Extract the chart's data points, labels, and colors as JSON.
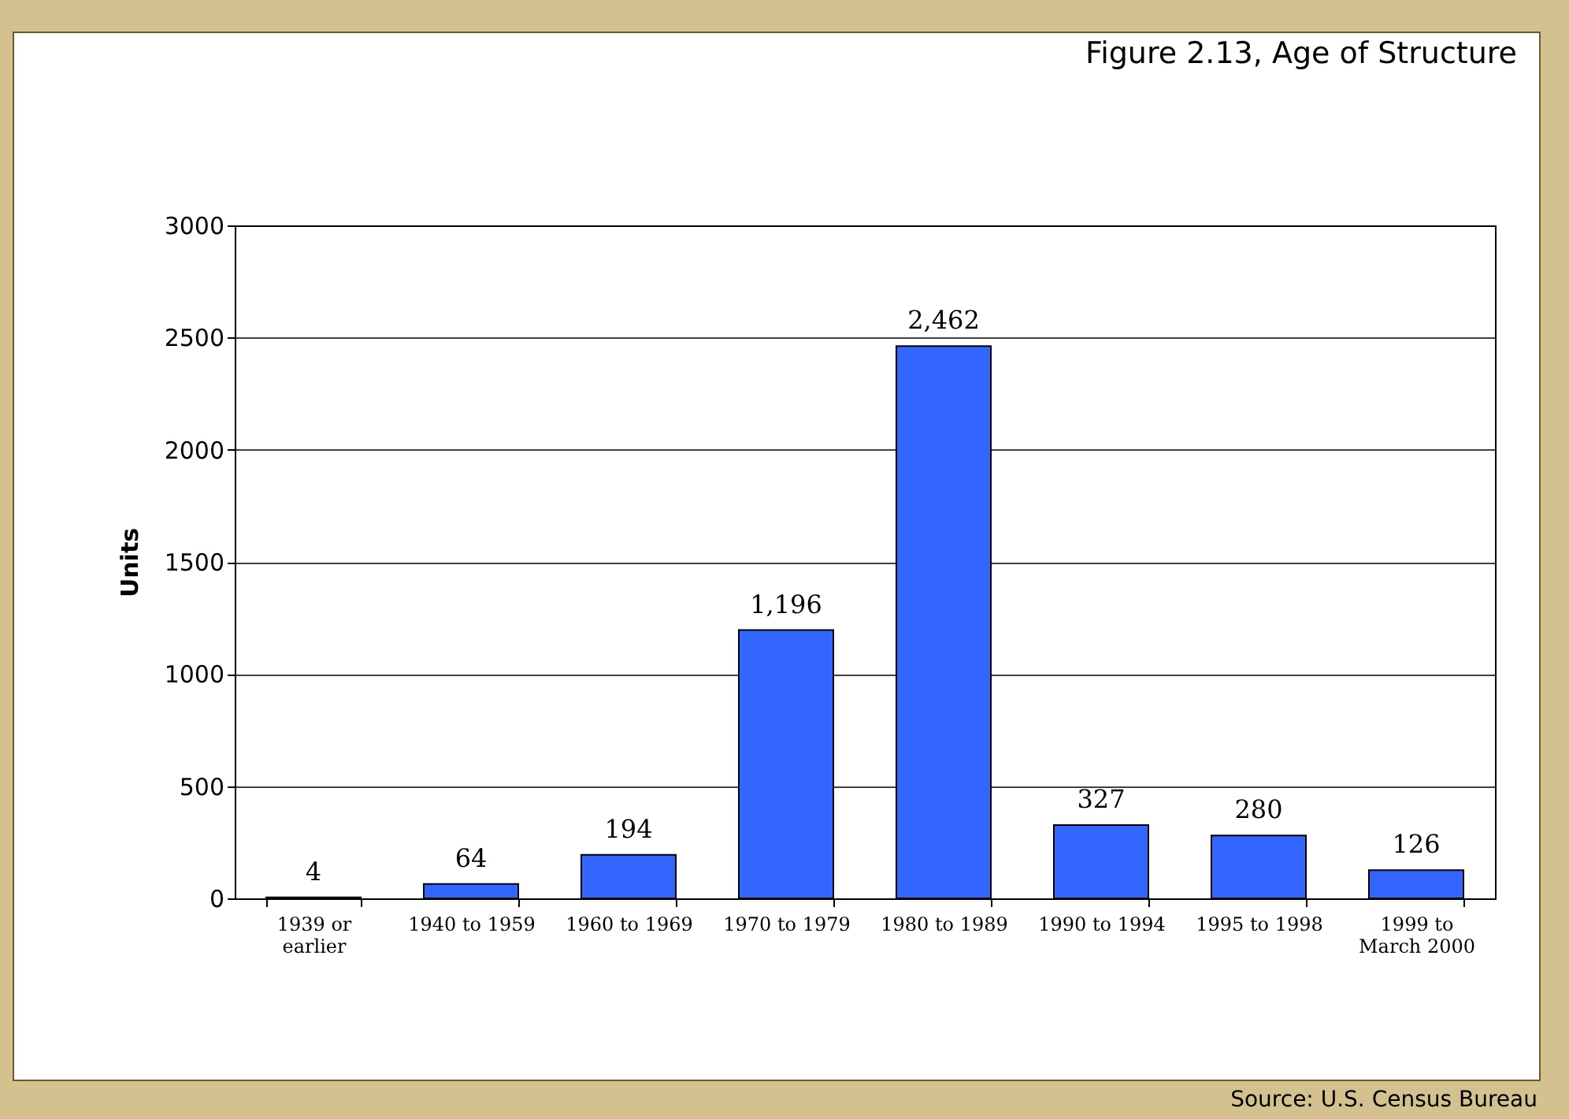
{
  "chart_data": {
    "type": "bar",
    "title": "Figure 2.13, Age of Structure",
    "ylabel": "Units",
    "categories": [
      "1939 or earlier",
      "1940 to 1959",
      "1960 to 1969",
      "1970 to 1979",
      "1980 to 1989",
      "1990 to 1994",
      "1995 to 1998",
      "1999 to March 2000"
    ],
    "values": [
      4,
      64,
      194,
      1196,
      2462,
      327,
      280,
      126
    ],
    "value_labels": [
      "4",
      "64",
      "194",
      "1,196",
      "2,462",
      "327",
      "280",
      "126"
    ],
    "color": "#3366ff",
    "ylim": [
      0,
      3000
    ],
    "yticks": [
      0,
      500,
      1000,
      1500,
      2000,
      2500,
      3000
    ],
    "grid": "y",
    "annotations": [
      "Source: U.S. Census Bureau"
    ]
  }
}
